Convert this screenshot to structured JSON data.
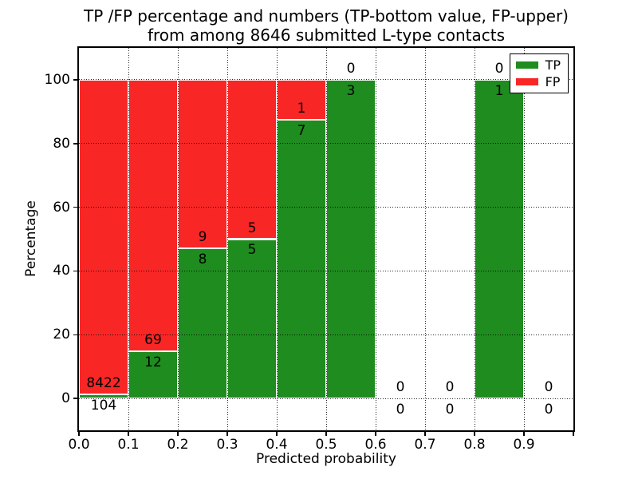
{
  "figure": {
    "title_line1": "TP /FP percentage and numbers (TP-bottom value, FP-upper)",
    "title_line2": "from among 8646 submitted L-type contacts"
  },
  "chart_data": {
    "type": "bar",
    "stacked": true,
    "title": "TP /FP percentage and numbers (TP-bottom value, FP-upper)\nfrom among 8646 submitted L-type contacts",
    "xlabel": "Predicted probability",
    "ylabel": "Percentage",
    "xlim": [
      0.0,
      1.0
    ],
    "ylim": [
      -10,
      110
    ],
    "x_tick_labels": [
      "0.0",
      "0.1",
      "0.2",
      "0.3",
      "0.4",
      "0.5",
      "0.6",
      "0.7",
      "0.8",
      "0.9"
    ],
    "y_tick_labels": [
      "0",
      "20",
      "40",
      "60",
      "80",
      "100"
    ],
    "y_tick_values": [
      0,
      20,
      40,
      60,
      80,
      100
    ],
    "grid": "dotted, drawn over bars",
    "total_contacts": 8646,
    "tp_color": "#1e8c1e",
    "fp_color": "#f92626",
    "legend": {
      "position": "upper right",
      "entries": [
        {
          "label": "TP",
          "color": "#1e8c1e"
        },
        {
          "label": "FP",
          "color": "#f92626"
        }
      ]
    },
    "bins": [
      {
        "range": [
          0.0,
          0.1
        ],
        "tp": 104,
        "fp": 8422,
        "tp_pct": 1.2
      },
      {
        "range": [
          0.1,
          0.2
        ],
        "tp": 12,
        "fp": 69,
        "tp_pct": 14.8
      },
      {
        "range": [
          0.2,
          0.3
        ],
        "tp": 8,
        "fp": 9,
        "tp_pct": 47.1
      },
      {
        "range": [
          0.3,
          0.4
        ],
        "tp": 5,
        "fp": 5,
        "tp_pct": 50.0
      },
      {
        "range": [
          0.4,
          0.5
        ],
        "tp": 7,
        "fp": 1,
        "tp_pct": 87.5
      },
      {
        "range": [
          0.5,
          0.6
        ],
        "tp": 3,
        "fp": 0,
        "tp_pct": 100.0
      },
      {
        "range": [
          0.6,
          0.7
        ],
        "tp": 0,
        "fp": 0,
        "tp_pct": 0
      },
      {
        "range": [
          0.7,
          0.8
        ],
        "tp": 0,
        "fp": 0,
        "tp_pct": 0
      },
      {
        "range": [
          0.8,
          0.9
        ],
        "tp": 1,
        "fp": 0,
        "tp_pct": 100.0
      },
      {
        "range": [
          0.9,
          1.0
        ],
        "tp": 0,
        "fp": 0,
        "tp_pct": 0
      }
    ]
  }
}
